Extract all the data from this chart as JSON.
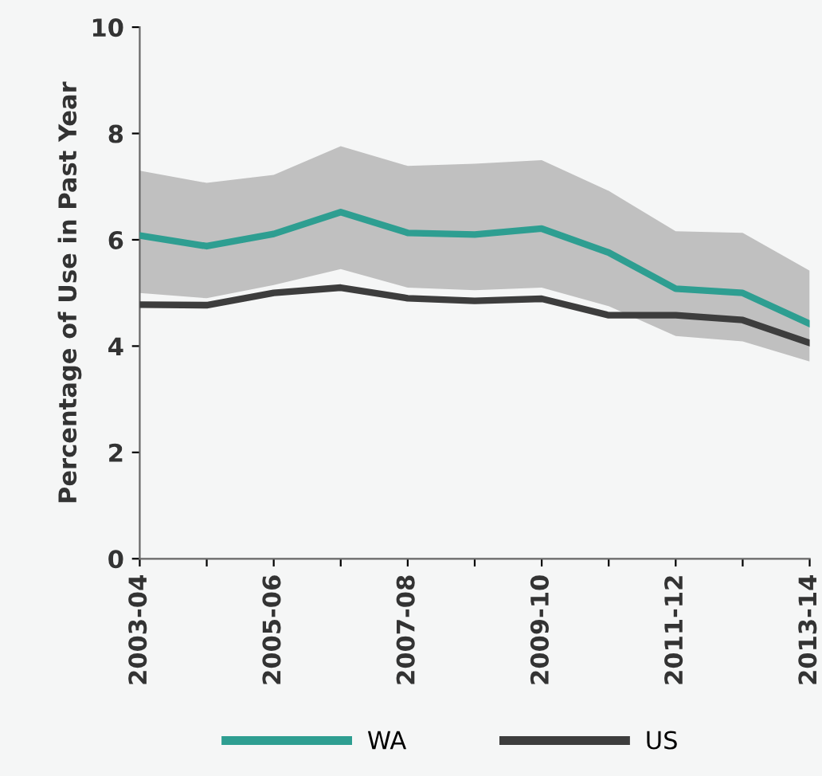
{
  "chart_data": {
    "type": "line",
    "ylabel": "Percentage of Use in Past Year",
    "categories": [
      "2003-04",
      null,
      "2005-06",
      null,
      "2007-08",
      null,
      "2009-10",
      null,
      "2011-12",
      null,
      "2013-14"
    ],
    "series": [
      {
        "name": "WA",
        "color": "#2e9e91",
        "values": [
          6.08,
          5.88,
          6.11,
          6.52,
          6.13,
          6.1,
          6.21,
          5.76,
          5.08,
          5.0,
          4.42
        ],
        "lower": [
          5.0,
          4.9,
          5.15,
          5.45,
          5.1,
          5.05,
          5.1,
          4.75,
          4.19,
          4.09,
          3.71
        ],
        "upper": [
          7.3,
          7.07,
          7.22,
          7.76,
          7.39,
          7.43,
          7.5,
          6.92,
          6.16,
          6.13,
          5.42
        ]
      },
      {
        "name": "US",
        "color": "#3d3d3d",
        "values": [
          4.78,
          4.77,
          5.0,
          5.1,
          4.9,
          4.85,
          4.89,
          4.58,
          4.58,
          4.49,
          4.06
        ]
      }
    ],
    "ylim": [
      0,
      10
    ],
    "yticks": [
      0,
      2,
      4,
      6,
      8,
      10
    ],
    "legend": "bottom",
    "grid": false
  }
}
